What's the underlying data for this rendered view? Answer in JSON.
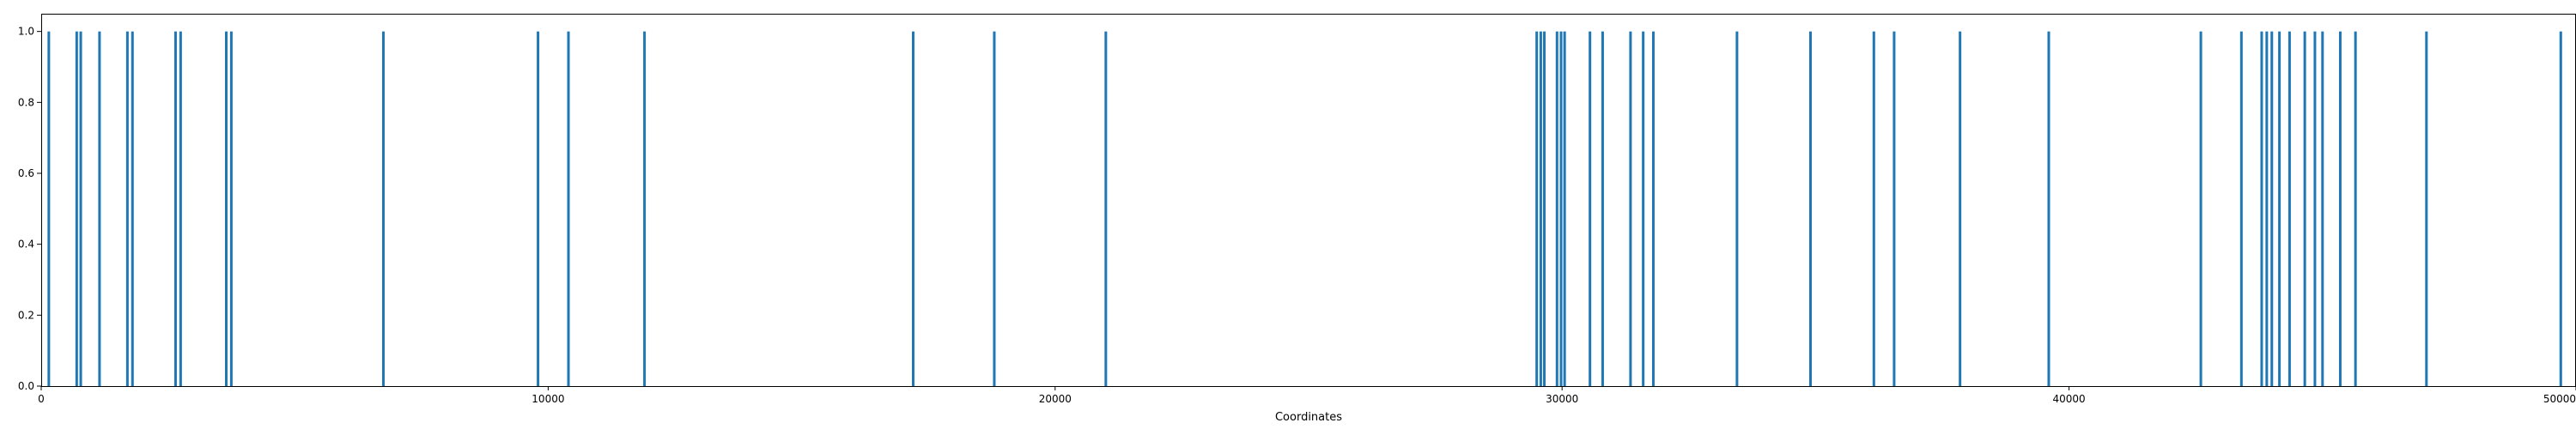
{
  "chart_data": {
    "type": "bar",
    "title": "",
    "xlabel": "Coordinates",
    "ylabel": "",
    "xlim": [
      0,
      50000
    ],
    "ylim": [
      0,
      1.05
    ],
    "grid": false,
    "legend": "none",
    "color": "#1f77b4",
    "xticks": [
      0,
      10000,
      20000,
      30000,
      40000,
      50000
    ],
    "xtick_labels": [
      "0",
      "10000",
      "20000",
      "30000",
      "40000",
      "50000"
    ],
    "yticks": [
      0.0,
      0.2,
      0.4,
      0.6,
      0.8,
      1.0
    ],
    "ytick_labels": [
      "0.0",
      "0.2",
      "0.4",
      "0.6",
      "0.8",
      "1.0"
    ],
    "series": [
      {
        "x": [
          150,
          700,
          780,
          1150,
          1700,
          1800,
          2650,
          2750,
          3650,
          3750,
          6750,
          9800,
          10400,
          11900,
          17200,
          18800,
          21000,
          29500,
          29580,
          29650,
          29900,
          29980,
          30050,
          30550,
          30800,
          31350,
          31600,
          31800,
          33450,
          34900,
          36150,
          36550,
          37850,
          39600,
          42600,
          43400,
          43800,
          43900,
          44000,
          44150,
          44350,
          44650,
          44850,
          45000,
          45350,
          45650,
          47050,
          49700
        ],
        "values": [
          1,
          1,
          1,
          1,
          1,
          1,
          1,
          1,
          1,
          1,
          1,
          1,
          1,
          1,
          1,
          1,
          1,
          1,
          1,
          1,
          1,
          1,
          1,
          1,
          1,
          1,
          1,
          1,
          1,
          1,
          1,
          1,
          1,
          1,
          1,
          1,
          1,
          1,
          1,
          1,
          1,
          1,
          1,
          1,
          1,
          1,
          1,
          1
        ]
      }
    ]
  }
}
